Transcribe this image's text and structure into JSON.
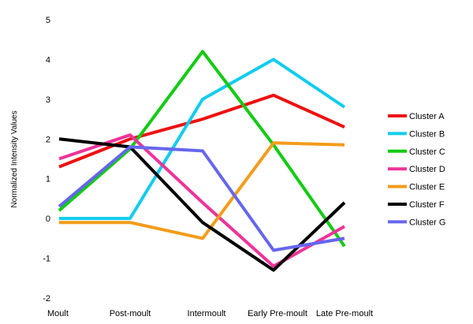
{
  "chart_data": {
    "type": "line",
    "title": "",
    "xlabel": "",
    "ylabel": "Normalized Intensity Values",
    "categories": [
      "Moult",
      "Post-moult",
      "Intermoult",
      "Early Pre-moult",
      "Late Pre-moult"
    ],
    "ylim": [
      -2,
      5
    ],
    "yticks": [
      -2,
      -1,
      0,
      1,
      2,
      3,
      4,
      5
    ],
    "grid": false,
    "legend_position": "right",
    "series": [
      {
        "name": "Cluster A",
        "color": "#ee1111",
        "values": [
          1.3,
          2.0,
          2.5,
          3.1,
          2.3
        ]
      },
      {
        "name": "Cluster B",
        "color": "#11ccee",
        "values": [
          0.0,
          0.0,
          3.0,
          4.0,
          2.8
        ]
      },
      {
        "name": "Cluster C",
        "color": "#11cc11",
        "values": [
          0.2,
          1.75,
          4.2,
          1.85,
          -0.7
        ]
      },
      {
        "name": "Cluster D",
        "color": "#ee3399",
        "values": [
          1.5,
          2.1,
          0.4,
          -1.2,
          -0.2
        ]
      },
      {
        "name": "Cluster E",
        "color": "#f39c1a",
        "values": [
          -0.1,
          -0.1,
          -0.5,
          1.9,
          1.85
        ]
      },
      {
        "name": "Cluster F",
        "color": "#000000",
        "values": [
          2.0,
          1.8,
          -0.1,
          -1.3,
          0.4
        ]
      },
      {
        "name": "Cluster G",
        "color": "#6666ee",
        "values": [
          0.3,
          1.8,
          1.7,
          -0.8,
          -0.5
        ]
      }
    ]
  }
}
